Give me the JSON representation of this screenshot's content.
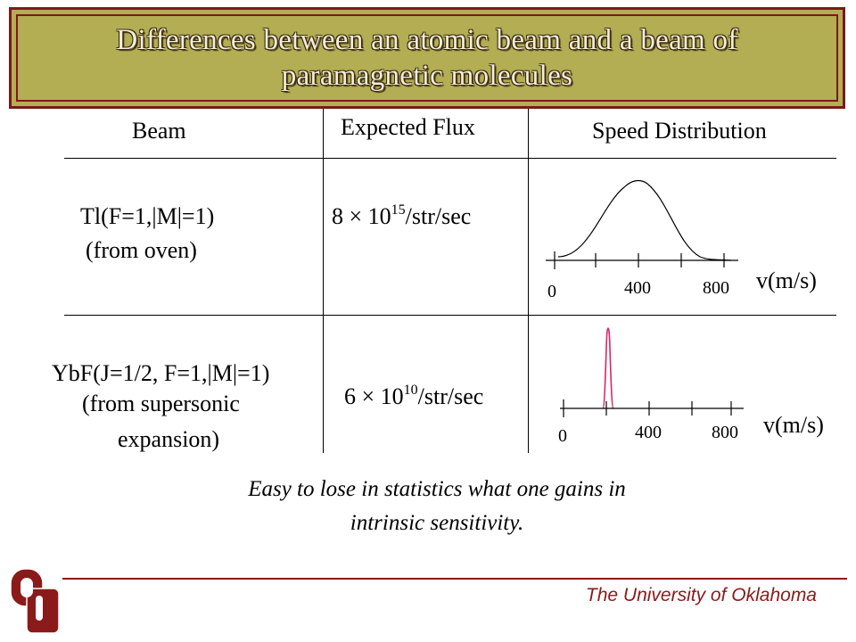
{
  "title": {
    "line1": "Differences between an atomic beam and a beam of",
    "line2": "paramagnetic molecules"
  },
  "headers": {
    "beam": "Beam",
    "flux": "Expected Flux",
    "speed": "Speed Distribution"
  },
  "rows": [
    {
      "beam_line1": "Tl(F=1,|M|=1)",
      "beam_line2": "(from oven)",
      "flux_prefix": "8 × 10",
      "flux_exp": "15",
      "flux_suffix": "/str/sec",
      "axis_labels": [
        "0",
        "400",
        "800"
      ],
      "axis_unit": "v(m/s)"
    },
    {
      "beam_line1": "YbF(J=1/2, F=1,|M|=1)",
      "beam_line2": "(from supersonic",
      "beam_line3": "expansion)",
      "flux_prefix": "6 × 10",
      "flux_exp": "10",
      "flux_suffix": "/str/sec",
      "axis_labels": [
        "0",
        "400",
        "800"
      ],
      "axis_unit": "v(m/s)"
    }
  ],
  "note": {
    "line1": "Easy to lose in statistics what one gains in",
    "line2": "intrinsic sensitivity."
  },
  "footer": {
    "university": "The University of Oklahoma"
  },
  "colors": {
    "title_bg": "#b3ad53",
    "title_border": "#7a1a1a",
    "accent": "#8b1a1a",
    "narrow_peak": "#d6286a"
  }
}
